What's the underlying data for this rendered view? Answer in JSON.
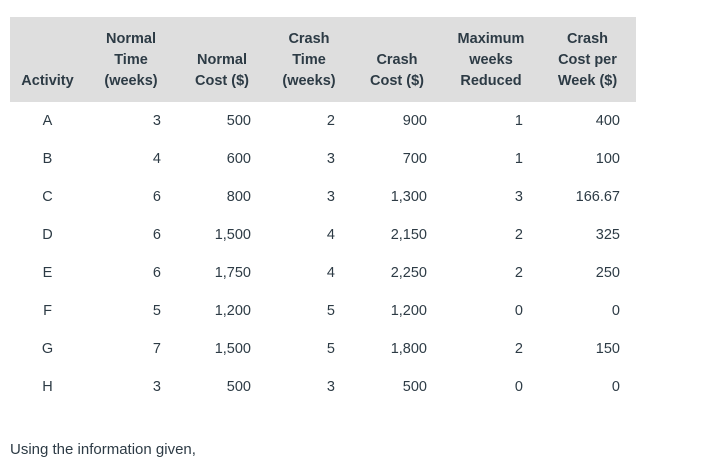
{
  "colors": {
    "header_bg": "#dedede",
    "text": "#2d3b45",
    "page_bg": "#ffffff"
  },
  "table": {
    "headers": [
      "Activity",
      "Normal\nTime\n(weeks)",
      "Normal\nCost ($)",
      "Crash\nTime\n(weeks)",
      "Crash\nCost ($)",
      "Maximum\nweeks\nReduced",
      "Crash\nCost per\nWeek ($)"
    ],
    "rows": [
      {
        "activity": "A",
        "normal_time": "3",
        "normal_cost": "500",
        "crash_time": "2",
        "crash_cost": "900",
        "max_weeks_reduced": "1",
        "crash_cost_per_week": "400"
      },
      {
        "activity": "B",
        "normal_time": "4",
        "normal_cost": "600",
        "crash_time": "3",
        "crash_cost": "700",
        "max_weeks_reduced": "1",
        "crash_cost_per_week": "100"
      },
      {
        "activity": "C",
        "normal_time": "6",
        "normal_cost": "800",
        "crash_time": "3",
        "crash_cost": "1,300",
        "max_weeks_reduced": "3",
        "crash_cost_per_week": "166.67"
      },
      {
        "activity": "D",
        "normal_time": "6",
        "normal_cost": "1,500",
        "crash_time": "4",
        "crash_cost": "2,150",
        "max_weeks_reduced": "2",
        "crash_cost_per_week": "325"
      },
      {
        "activity": "E",
        "normal_time": "6",
        "normal_cost": "1,750",
        "crash_time": "4",
        "crash_cost": "2,250",
        "max_weeks_reduced": "2",
        "crash_cost_per_week": "250"
      },
      {
        "activity": "F",
        "normal_time": "5",
        "normal_cost": "1,200",
        "crash_time": "5",
        "crash_cost": "1,200",
        "max_weeks_reduced": "0",
        "crash_cost_per_week": "0"
      },
      {
        "activity": "G",
        "normal_time": "7",
        "normal_cost": "1,500",
        "crash_time": "5",
        "crash_cost": "1,800",
        "max_weeks_reduced": "2",
        "crash_cost_per_week": "150"
      },
      {
        "activity": "H",
        "normal_time": "3",
        "normal_cost": "500",
        "crash_time": "3",
        "crash_cost": "500",
        "max_weeks_reduced": "0",
        "crash_cost_per_week": "0"
      }
    ]
  },
  "footer": {
    "text": "Using the information given,"
  }
}
